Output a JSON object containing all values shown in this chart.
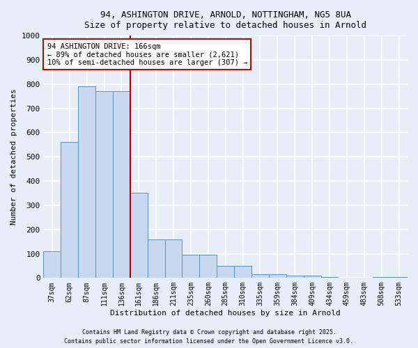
{
  "title1": "94, ASHINGTON DRIVE, ARNOLD, NOTTINGHAM, NG5 8UA",
  "title2": "Size of property relative to detached houses in Arnold",
  "xlabel": "Distribution of detached houses by size in Arnold",
  "ylabel": "Number of detached properties",
  "bar_labels": [
    "37sqm",
    "62sqm",
    "87sqm",
    "111sqm",
    "136sqm",
    "161sqm",
    "186sqm",
    "211sqm",
    "235sqm",
    "260sqm",
    "285sqm",
    "310sqm",
    "335sqm",
    "359sqm",
    "384sqm",
    "409sqm",
    "434sqm",
    "459sqm",
    "483sqm",
    "508sqm",
    "533sqm"
  ],
  "bar_values": [
    110,
    560,
    790,
    770,
    770,
    350,
    160,
    160,
    95,
    95,
    50,
    50,
    15,
    15,
    10,
    10,
    5,
    0,
    0,
    5,
    5
  ],
  "bar_color": "#c8d8ee",
  "bar_edge_color": "#5b8fc9",
  "property_line_x": 4.5,
  "annotation_text": "94 ASHINGTON DRIVE: 166sqm\n← 89% of detached houses are smaller (2,621)\n10% of semi-detached houses are larger (307) →",
  "annotation_box_color": "white",
  "annotation_box_edge_color": "#cc0000",
  "red_line_color": "#aa0000",
  "background_color": "#e8eef8",
  "grid_color": "#ffffff",
  "ylim": [
    0,
    1000
  ],
  "yticks": [
    0,
    100,
    200,
    300,
    400,
    500,
    600,
    700,
    800,
    900,
    1000
  ],
  "footer1": "Contains HM Land Registry data © Crown copyright and database right 2025.",
  "footer2": "Contains public sector information licensed under the Open Government Licence v3.0."
}
